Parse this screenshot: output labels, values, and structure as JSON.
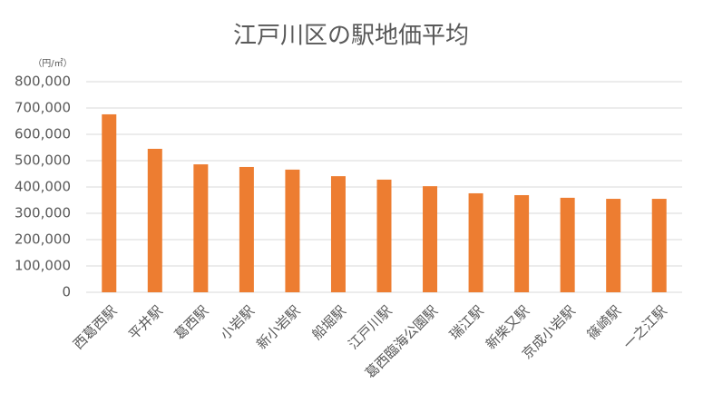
{
  "chart_data": {
    "type": "bar",
    "title": "江戸川区の駅地価平均",
    "unit_label": "（円/㎡）",
    "categories": [
      "西葛西駅",
      "平井駅",
      "葛西駅",
      "小岩駅",
      "新小岩駅",
      "船堀駅",
      "江戸川駅",
      "葛西臨海公園駅",
      "瑞江駅",
      "新柴又駅",
      "京成小岩駅",
      "篠崎駅",
      "一之江駅"
    ],
    "values": [
      676000,
      545000,
      486000,
      476000,
      466000,
      441000,
      428000,
      403000,
      376000,
      369000,
      359000,
      355000,
      355000
    ],
    "color": "#ed7d31",
    "ylim": [
      0,
      800000
    ],
    "yticks": [
      0,
      {
        "value": 100000,
        "label": "100,000"
      },
      {
        "value": 200000,
        "label": "200,000"
      },
      {
        "value": 300000,
        "label": "300,000"
      },
      {
        "value": 400000,
        "label": "400,000"
      },
      {
        "value": 500000,
        "label": "500,000"
      },
      {
        "value": 600000,
        "label": "600,000"
      },
      {
        "value": 700000,
        "label": "700,000"
      },
      {
        "value": 800000,
        "label": "800,000"
      }
    ],
    "grid": true
  }
}
